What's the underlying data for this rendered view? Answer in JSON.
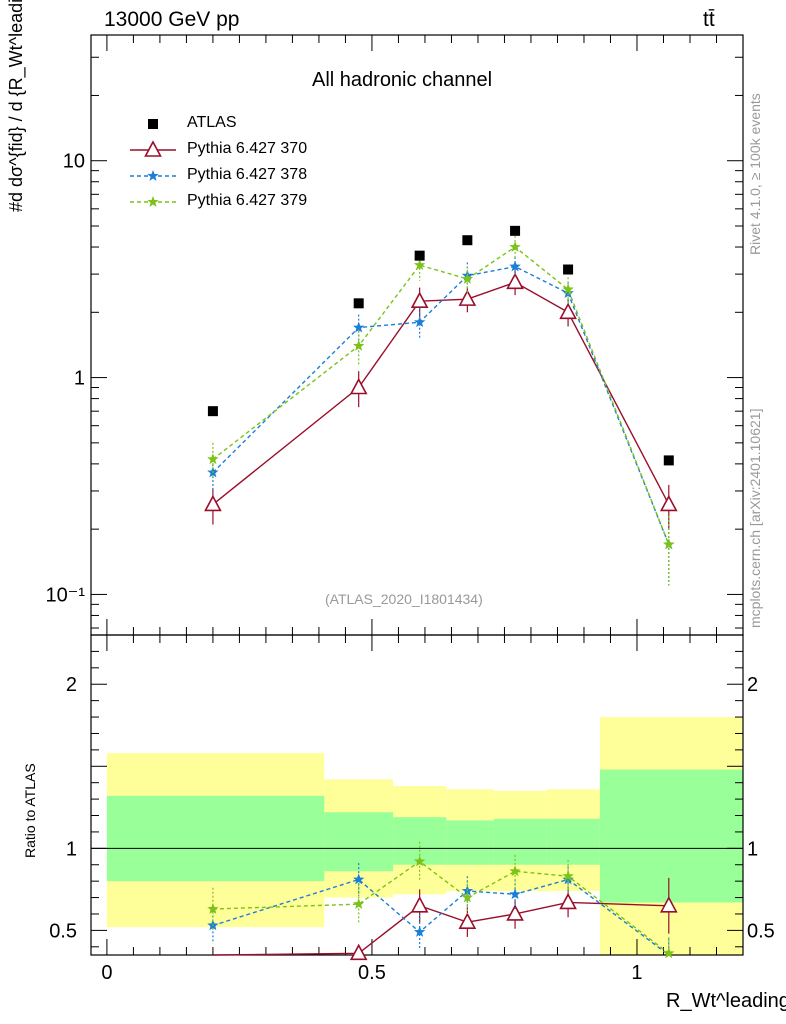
{
  "header": {
    "energy_label": "13000 GeV pp",
    "process_label": "tt̄"
  },
  "side_labels": {
    "rivet": "Rivet 4.1.0, ≥ 100k events",
    "mcplots": "mcplots.cern.ch [arXiv:2401.10621]"
  },
  "colors": {
    "atlas": "#000000",
    "pythia_370": "#9b0e2b",
    "pythia_378": "#1a7fd6",
    "pythia_379": "#7cc219",
    "band_stat": "#99ff99",
    "band_total": "#ffff99",
    "watermark": "#999999"
  },
  "chart_data": [
    {
      "type": "line",
      "title": "All hadronic channel",
      "annotation": "(ATLAS_2020_I1801434)",
      "ylabel": "#d dσ^{fid} / d {R_Wt^leading} [pb]",
      "yscale": "log",
      "ylim": [
        0.065,
        38
      ],
      "xlim": [
        -0.03,
        1.2
      ],
      "yticks": [
        {
          "value": 10,
          "label": "10"
        },
        {
          "value": 1,
          "label": "1"
        },
        {
          "value": 0.1,
          "label": "10⁻¹"
        }
      ],
      "legend": {
        "position": "top-left",
        "entries": [
          "ATLAS",
          "Pythia 6.427 370",
          "Pythia 6.427 378",
          "Pythia 6.427 379"
        ]
      },
      "x": [
        0.2,
        0.475,
        0.59,
        0.68,
        0.77,
        0.87,
        1.06
      ],
      "bin_edges": [
        0,
        0.41,
        0.54,
        0.64,
        0.73,
        0.83,
        0.93,
        1.2
      ],
      "series": [
        {
          "name": "ATLAS",
          "style": "square",
          "values": [
            0.7,
            2.2,
            3.65,
            4.3,
            4.75,
            3.15,
            0.415
          ]
        },
        {
          "name": "Pythia 6.427 370",
          "style": "triangle-solid",
          "values": [
            0.26,
            0.9,
            2.25,
            2.3,
            2.75,
            2.0,
            0.26
          ],
          "err": [
            0.05,
            0.17,
            0.35,
            0.3,
            0.35,
            0.28,
            0.06
          ]
        },
        {
          "name": "Pythia 6.427 378",
          "style": "star-dashed",
          "values": [
            0.365,
            1.7,
            1.8,
            2.95,
            3.25,
            2.45,
            0.17
          ],
          "err": [
            0.07,
            0.25,
            0.3,
            0.45,
            0.35,
            0.3,
            0.06
          ]
        },
        {
          "name": "Pythia 6.427 379",
          "style": "star-dashed",
          "values": [
            0.42,
            1.4,
            3.3,
            2.85,
            4.0,
            2.55,
            0.17
          ],
          "err": [
            0.08,
            0.25,
            0.5,
            0.4,
            0.5,
            0.35,
            0.06
          ]
        }
      ]
    },
    {
      "type": "line",
      "title": "",
      "ylabel": "Ratio to ATLAS",
      "xlabel": "R_Wt^leading",
      "ylim": [
        0.35,
        2.3
      ],
      "xlim": [
        -0.03,
        1.2
      ],
      "yticks": [
        {
          "value": 2,
          "label": "2"
        },
        {
          "value": 1,
          "label": "1"
        },
        {
          "value": 0.5,
          "label": "0.5"
        }
      ],
      "xticks": [
        {
          "value": 0,
          "label": "0"
        },
        {
          "value": 0.5,
          "label": "0.5"
        },
        {
          "value": 1,
          "label": "1"
        }
      ],
      "x": [
        0.2,
        0.475,
        0.59,
        0.68,
        0.77,
        0.87,
        1.06
      ],
      "bin_edges": [
        0,
        0.41,
        0.54,
        0.64,
        0.73,
        0.83,
        0.93,
        1.2
      ],
      "bands": {
        "total": [
          [
            0.52,
            1.58
          ],
          [
            0.7,
            1.42
          ],
          [
            0.72,
            1.38
          ],
          [
            0.74,
            1.36
          ],
          [
            0.74,
            1.35
          ],
          [
            0.74,
            1.36
          ],
          [
            0.3,
            1.8
          ]
        ],
        "stat": [
          [
            0.8,
            1.32
          ],
          [
            0.86,
            1.22
          ],
          [
            0.9,
            1.19
          ],
          [
            0.9,
            1.17
          ],
          [
            0.9,
            1.18
          ],
          [
            0.9,
            1.18
          ],
          [
            0.67,
            1.48
          ]
        ]
      },
      "series": [
        {
          "name": "Pythia 6.427 370",
          "values": [
            0.2,
            0.36,
            0.65,
            0.55,
            0.6,
            0.67,
            0.65
          ],
          "err": [
            0.0,
            0.0,
            0.1,
            0.09,
            0.09,
            0.09,
            0.17
          ]
        },
        {
          "name": "Pythia 6.427 378",
          "values": [
            0.53,
            0.81,
            0.49,
            0.74,
            0.72,
            0.81,
            0.35
          ],
          "err": [
            0.11,
            0.1,
            0.11,
            0.09,
            0.09,
            0.08,
            0.1
          ]
        },
        {
          "name": "Pythia 6.427 379",
          "values": [
            0.63,
            0.66,
            0.92,
            0.7,
            0.86,
            0.83,
            0.36
          ],
          "err": [
            0.13,
            0.12,
            0.12,
            0.1,
            0.1,
            0.1,
            0.1
          ]
        }
      ]
    }
  ]
}
